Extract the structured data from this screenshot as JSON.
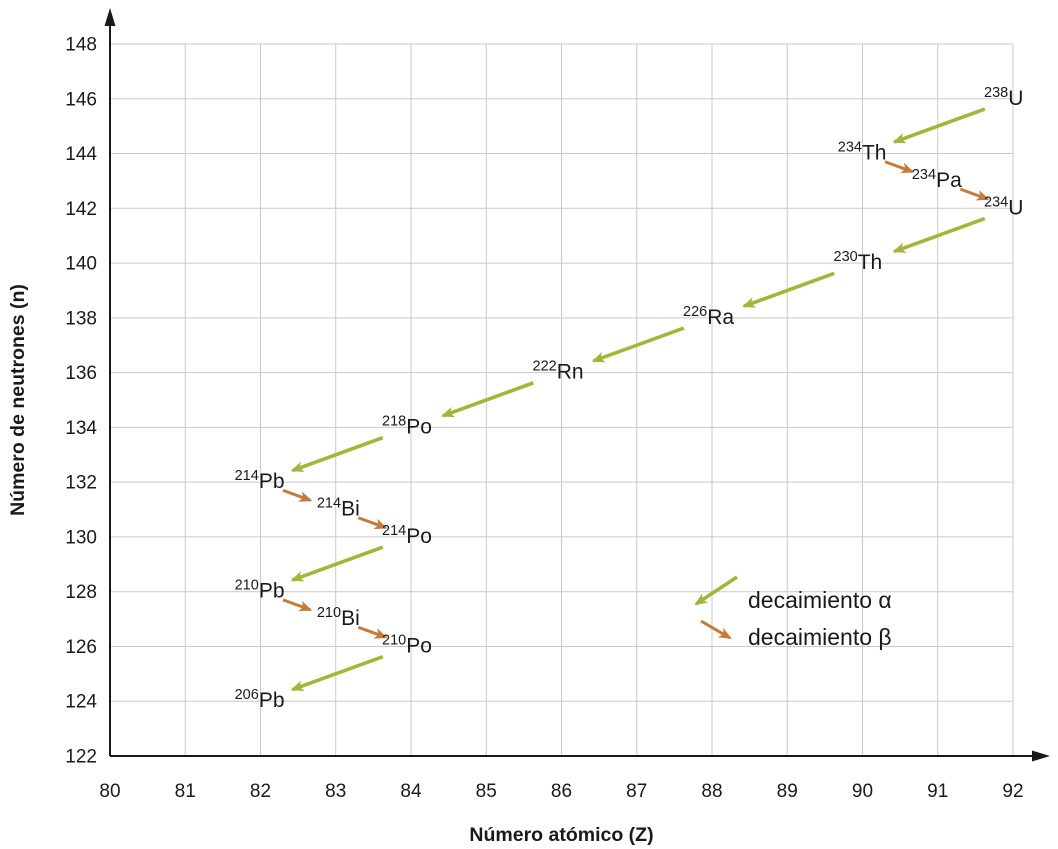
{
  "chart_data": {
    "type": "scatter",
    "title": "",
    "xlabel": "Número atómico (Z)",
    "ylabel": "Número de neutrones (n)",
    "xlim": [
      80,
      92
    ],
    "ylim": [
      122,
      148
    ],
    "xticks": [
      80,
      81,
      82,
      83,
      84,
      85,
      86,
      87,
      88,
      89,
      90,
      91,
      92
    ],
    "yticks": [
      122,
      124,
      126,
      128,
      130,
      132,
      134,
      136,
      138,
      140,
      142,
      144,
      146,
      148
    ],
    "grid": true,
    "legend": {
      "alpha": "decaimiento α",
      "beta": "decaimiento β",
      "position": "inside-lower-right"
    },
    "colors": {
      "alpha": "#a6b437",
      "beta": "#c87a3a",
      "axis": "#1a1a1a",
      "grid": "#c9c9c9",
      "text": "#1a1a1a"
    },
    "nuclides": [
      {
        "mass": "238",
        "symbol": "U",
        "z": 92,
        "n": 146,
        "label_side": "right"
      },
      {
        "mass": "234",
        "symbol": "Th",
        "z": 90,
        "n": 144,
        "label_side": "left"
      },
      {
        "mass": "234",
        "symbol": "Pa",
        "z": 91,
        "n": 143,
        "label_side": "left"
      },
      {
        "mass": "234",
        "symbol": "U",
        "z": 92,
        "n": 142,
        "label_side": "right"
      },
      {
        "mass": "230",
        "symbol": "Th",
        "z": 90,
        "n": 140,
        "label_side": "right"
      },
      {
        "mass": "226",
        "symbol": "Ra",
        "z": 88,
        "n": 138,
        "label_side": "right"
      },
      {
        "mass": "222",
        "symbol": "Rn",
        "z": 86,
        "n": 136,
        "label_side": "right"
      },
      {
        "mass": "218",
        "symbol": "Po",
        "z": 84,
        "n": 134,
        "label_side": "right"
      },
      {
        "mass": "214",
        "symbol": "Pb",
        "z": 82,
        "n": 132,
        "label_side": "left"
      },
      {
        "mass": "214",
        "symbol": "Bi",
        "z": 83,
        "n": 131,
        "label_side": "left"
      },
      {
        "mass": "214",
        "symbol": "Po",
        "z": 84,
        "n": 130,
        "label_side": "right"
      },
      {
        "mass": "210",
        "symbol": "Pb",
        "z": 82,
        "n": 128,
        "label_side": "left"
      },
      {
        "mass": "210",
        "symbol": "Bi",
        "z": 83,
        "n": 127,
        "label_side": "left"
      },
      {
        "mass": "210",
        "symbol": "Po",
        "z": 84,
        "n": 126,
        "label_side": "right"
      },
      {
        "mass": "206",
        "symbol": "Pb",
        "z": 82,
        "n": 124,
        "label_side": "left"
      }
    ],
    "decays": [
      {
        "from": 0,
        "to": 1,
        "type": "alpha"
      },
      {
        "from": 1,
        "to": 2,
        "type": "beta"
      },
      {
        "from": 2,
        "to": 3,
        "type": "beta"
      },
      {
        "from": 3,
        "to": 4,
        "type": "alpha"
      },
      {
        "from": 4,
        "to": 5,
        "type": "alpha"
      },
      {
        "from": 5,
        "to": 6,
        "type": "alpha"
      },
      {
        "from": 6,
        "to": 7,
        "type": "alpha"
      },
      {
        "from": 7,
        "to": 8,
        "type": "alpha"
      },
      {
        "from": 8,
        "to": 9,
        "type": "beta"
      },
      {
        "from": 9,
        "to": 10,
        "type": "beta"
      },
      {
        "from": 10,
        "to": 11,
        "type": "alpha"
      },
      {
        "from": 11,
        "to": 12,
        "type": "beta"
      },
      {
        "from": 12,
        "to": 13,
        "type": "beta"
      },
      {
        "from": 13,
        "to": 14,
        "type": "alpha"
      }
    ]
  }
}
